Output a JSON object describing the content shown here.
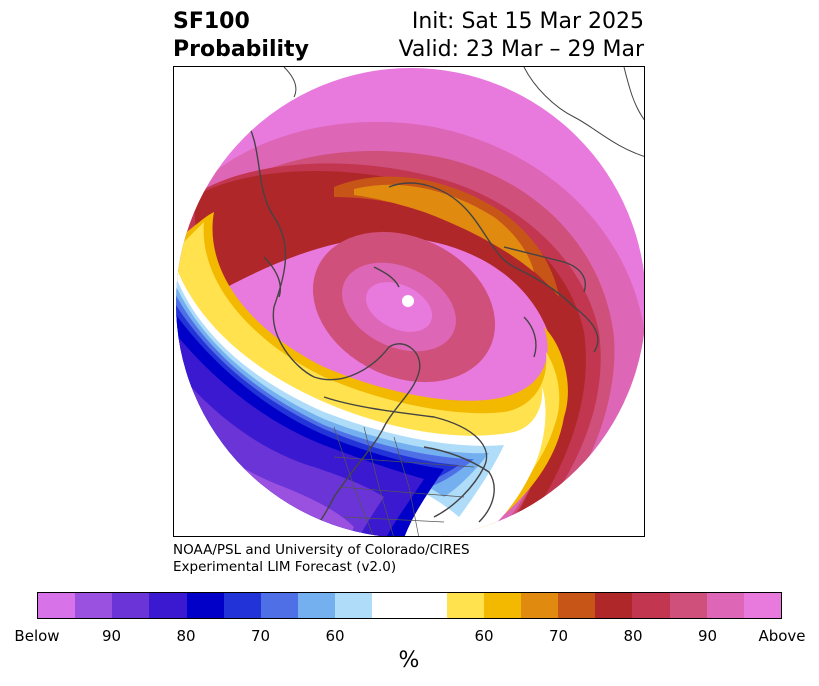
{
  "title": {
    "left_line1": "SF100",
    "left_line2": "Probability",
    "right_line1": "Init: Sat 15 Mar 2025",
    "right_line2": "Valid: 23 Mar – 29 Mar"
  },
  "credit": {
    "line1": "NOAA/PSL and University of Colorado/CIRES",
    "line2": "Experimental LIM Forecast (v2.0)"
  },
  "colorbar": {
    "unit": "%",
    "below_colors": [
      "#d772e8",
      "#9b51e0",
      "#6a34d6",
      "#3a19d0",
      "#0000c8",
      "#2233d8",
      "#4f6fe6",
      "#74b0f0",
      "#aedcf9"
    ],
    "neutral_color": "#ffffff",
    "above_colors": [
      "#ffe24d",
      "#f3b800",
      "#e08a10",
      "#c85518",
      "#b0272a",
      "#c23650",
      "#d0507c",
      "#de66b6",
      "#e87ade"
    ],
    "tick_labels": [
      "Below",
      "90",
      "80",
      "70",
      "60",
      "60",
      "70",
      "80",
      "90",
      "Above"
    ]
  },
  "map_colors": {
    "above_outer": "#e87ade",
    "above_90": "#de66b6",
    "above_85": "#d0507c",
    "above_80": "#c23650",
    "above_75": "#b0272a",
    "above_70": "#c85518",
    "above_65": "#e08a10",
    "above_60": "#f3b800",
    "above_55": "#ffe24d",
    "below_55": "#aedcf9",
    "below_60": "#74b0f0",
    "below_65": "#4f6fe6",
    "below_70": "#2233d8",
    "below_75": "#0000c8",
    "below_80": "#3a19d0",
    "below_85": "#6a34d6",
    "below_90": "#9b51e0",
    "coast": "#444444"
  }
}
